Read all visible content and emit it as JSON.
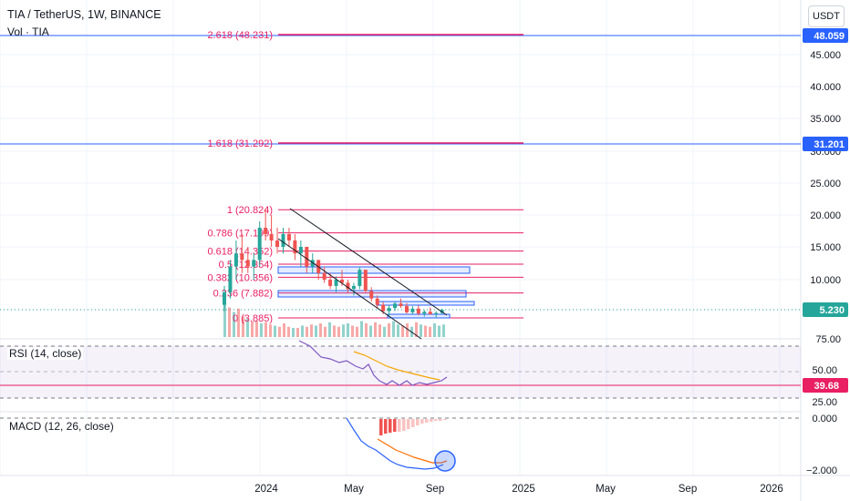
{
  "header": {
    "symbol_line": "TIA / TetherUS, 1W, BINANCE",
    "vol_label": "Vol · TIA",
    "currency_button": "USDT"
  },
  "panes": {
    "rsi_label": "RSI (14, close)",
    "macd_label": "MACD (12, 26, close)"
  },
  "price_axis": {
    "ticks": [
      "45.000",
      "40.000",
      "35.000",
      "30.000",
      "25.000",
      "20.000",
      "15.000",
      "10.000",
      "75.00"
    ],
    "markers": [
      {
        "text": "48.059",
        "color": "#2962ff"
      },
      {
        "text": "31.201",
        "color": "#2962ff"
      },
      {
        "text": "5.230",
        "color": "#26a69a"
      }
    ]
  },
  "rsi_axis": {
    "ticks": [
      "50.00",
      "25.00"
    ],
    "marker": {
      "text": "39.68",
      "color": "#e91e63"
    }
  },
  "macd_axis": {
    "ticks": [
      "0.000",
      "−2.000"
    ]
  },
  "time_axis": {
    "labels": [
      "2024",
      "May",
      "Sep",
      "2025",
      "May",
      "Sep",
      "2026"
    ]
  },
  "colors": {
    "fib_line": "#e91e63",
    "h_line": "#2962ff",
    "up": "#26a69a",
    "down": "#ef5350",
    "rsi": "#7e57c2",
    "rsi_ma": "#f7a600",
    "macd": "#2962ff",
    "signal": "#ff6d00",
    "channel": "#131722"
  },
  "chart_data": {
    "type": "candlestick",
    "title": "TIA / TetherUS, 1W, BINANCE",
    "last_price": 5.23,
    "fibonacci": [
      {
        "label": "2.618 (48.231)",
        "level": 48.231
      },
      {
        "label": "1.618 (31.292)",
        "level": 31.292
      },
      {
        "label": "1 (20.824)",
        "level": 20.824
      },
      {
        "label": "0.786 (17.199)",
        "level": 17.199
      },
      {
        "label": "0.618 (14.352)",
        "level": 14.352
      },
      {
        "label": "0.5 (12.354)",
        "level": 12.354
      },
      {
        "label": "0.382 (10.356)",
        "level": 10.356
      },
      {
        "label": "0.236 (7.882)",
        "level": 7.882
      },
      {
        "label": "0 (3.885)",
        "level": 3.885
      }
    ],
    "horizontal_lines": [
      48.059,
      31.201
    ],
    "rsi": {
      "name": "RSI (14, close)",
      "last": 39.68,
      "levels": [
        70,
        50,
        30
      ]
    },
    "macd": {
      "name": "MACD (12, 26, close)"
    }
  }
}
